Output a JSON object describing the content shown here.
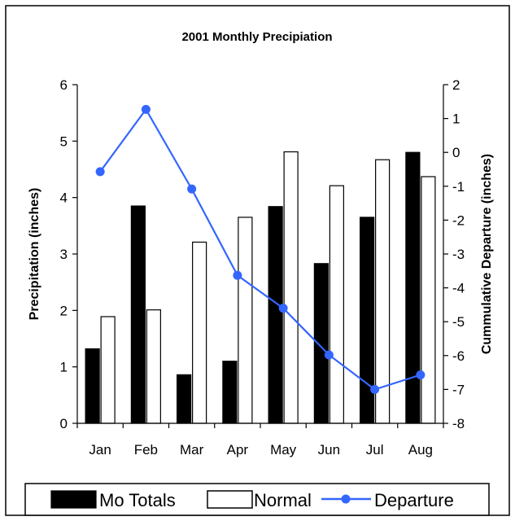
{
  "chart_data": {
    "type": "bar",
    "title": "2001 Monthly Precipiation",
    "categories": [
      "Jan",
      "Feb",
      "Mar",
      "Apr",
      "May",
      "Jun",
      "Jul",
      "Aug"
    ],
    "series": [
      {
        "name": "Mo Totals",
        "type": "bar",
        "axis": "left",
        "color": "#000000",
        "values": [
          1.32,
          3.85,
          0.86,
          1.1,
          3.84,
          2.83,
          3.65,
          4.8
        ]
      },
      {
        "name": "Normal",
        "type": "bar",
        "axis": "left",
        "color": "#ffffff",
        "values": [
          1.89,
          2.01,
          3.21,
          3.65,
          4.81,
          4.21,
          4.67,
          4.37
        ]
      },
      {
        "name": "Departure",
        "type": "line",
        "axis": "right",
        "color": "#3366ff",
        "values": [
          -0.57,
          1.27,
          -1.08,
          -3.63,
          -4.6,
          -5.98,
          -7.0,
          -6.57
        ]
      }
    ],
    "ylabel": "Precipitation (inches)",
    "ylim": [
      0,
      6
    ],
    "yticks": [
      "0",
      "1",
      "2",
      "3",
      "4",
      "5",
      "6"
    ],
    "y2label": "Cummulative Departure (inches)",
    "y2lim": [
      -8,
      2
    ],
    "y2ticks": [
      "-8",
      "-7",
      "-6",
      "-5",
      "-4",
      "-3",
      "-2",
      "-1",
      "0",
      "1",
      "2"
    ],
    "grid": false,
    "legend_position": "bottom"
  }
}
